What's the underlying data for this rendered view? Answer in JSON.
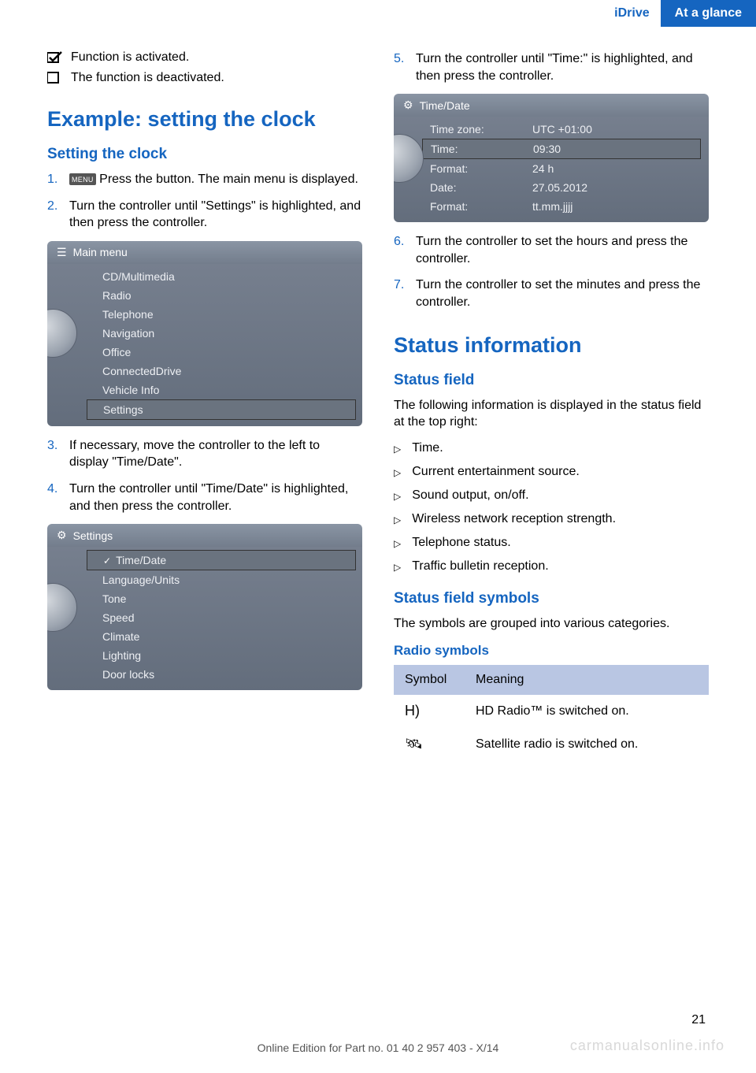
{
  "header": {
    "left": "iDrive",
    "right": "At a glance"
  },
  "intro": {
    "activated_icon": "checkbox-checked-icon",
    "activated_text": "Function is activated.",
    "deactivated_icon": "checkbox-empty-icon",
    "deactivated_text": "The function is deactivated."
  },
  "h1_example": "Example: setting the clock",
  "h2_setting": "Setting the clock",
  "steps_left": {
    "s1_num": "1.",
    "s1_btn": "MENU",
    "s1_text": " Press the button. The main menu is displayed.",
    "s2_num": "2.",
    "s2_text": "Turn the controller until \"Settings\" is highlighted, and then press the controller.",
    "s3_num": "3.",
    "s3_text": "If necessary, move the controller to the left to display \"Time/Date\".",
    "s4_num": "4.",
    "s4_text": "Turn the controller until \"Time/Date\" is highlighted, and then press the controller."
  },
  "screen1": {
    "title": "Main menu",
    "items": [
      "CD/Multimedia",
      "Radio",
      "Telephone",
      "Navigation",
      "Office",
      "ConnectedDrive",
      "Vehicle Info",
      "Settings"
    ],
    "selected_index": 7
  },
  "screen2": {
    "title": "Settings",
    "items": [
      "Time/Date",
      "Language/Units",
      "Tone",
      "Speed",
      "Climate",
      "Lighting",
      "Door locks"
    ],
    "selected_index": 0
  },
  "steps_right": {
    "s5_num": "5.",
    "s5_text": "Turn the controller until \"Time:\" is highlighted, and then press the controller.",
    "s6_num": "6.",
    "s6_text": "Turn the controller to set the hours and press the controller.",
    "s7_num": "7.",
    "s7_text": "Turn the controller to set the minutes and press the controller."
  },
  "screen3": {
    "title": "Time/Date",
    "rows": [
      {
        "k": "Time zone:",
        "v": "UTC +01:00"
      },
      {
        "k": "Time:",
        "v": "09:30"
      },
      {
        "k": "Format:",
        "v": "24 h"
      },
      {
        "k": "Date:",
        "v": "27.05.2012"
      },
      {
        "k": "Format:",
        "v": "tt.mm.jjjj"
      }
    ],
    "selected_index": 1
  },
  "h1_status": "Status information",
  "h2_statusfield": "Status field",
  "status_intro": "The following information is displayed in the status field at the top right:",
  "status_list": [
    "Time.",
    "Current entertainment source.",
    "Sound output, on/off.",
    "Wireless network reception strength.",
    "Telephone status.",
    "Traffic bulletin reception."
  ],
  "h2_symbols": "Status field symbols",
  "symbols_intro": "The symbols are grouped into various categories.",
  "h3_radio": "Radio symbols",
  "table": {
    "head_symbol": "Symbol",
    "head_meaning": "Meaning",
    "rows": [
      {
        "sym": "H)",
        "meaning": "HD Radio™ is switched on."
      },
      {
        "sym": "🛰",
        "meaning": "Satellite radio is switched on."
      }
    ]
  },
  "page_number": "21",
  "footer": "Online Edition for Part no. 01 40 2 957 403 - X/14",
  "watermark": "carmanualsonline.info",
  "colors": {
    "accent": "#1565c0",
    "headerbg": "#1565c0",
    "tablehead": "#b9c6e3"
  }
}
